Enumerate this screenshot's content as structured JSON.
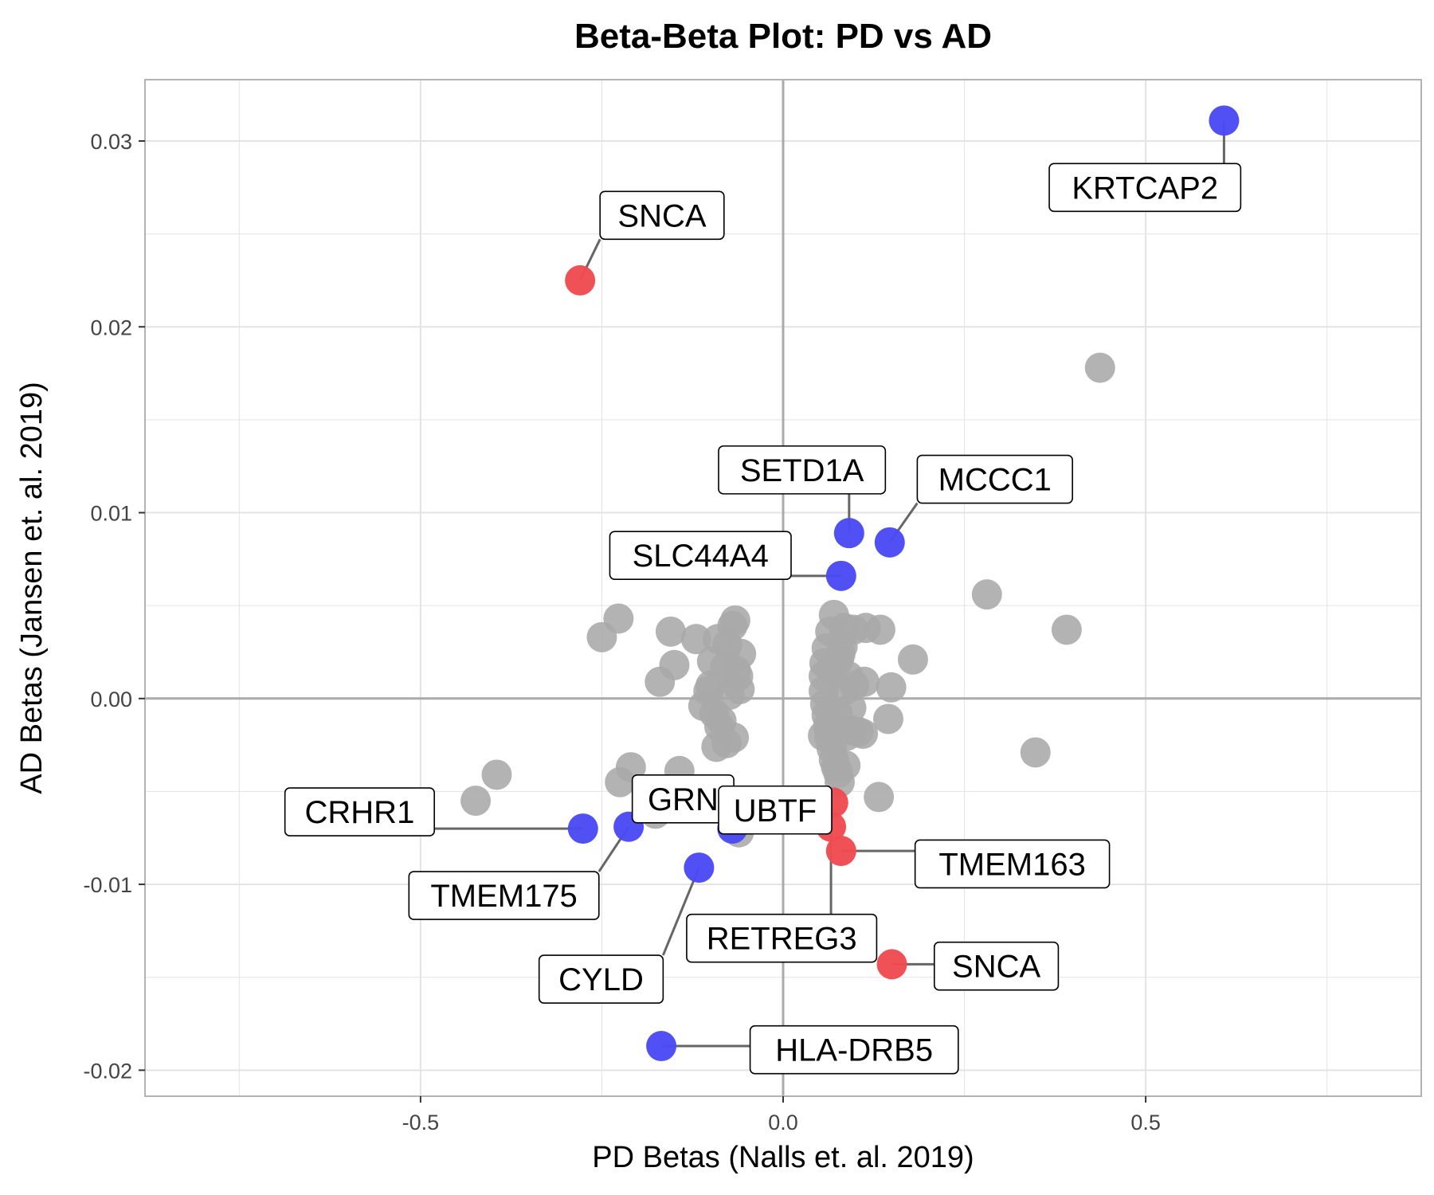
{
  "chart_data": {
    "type": "scatter",
    "title": "Beta-Beta Plot: PD vs AD",
    "xlabel": "PD Betas (Nalls et. al. 2019)",
    "ylabel": "AD Betas (Jansen et. al. 2019)",
    "xlim": [
      -0.88,
      0.88
    ],
    "ylim": [
      -0.0214,
      0.0333
    ],
    "x_ticks": [
      -0.5,
      0.0,
      0.5
    ],
    "x_tick_labels": [
      "-0.5",
      "0.0",
      "0.5"
    ],
    "y_ticks": [
      -0.02,
      -0.01,
      0.0,
      0.01,
      0.02,
      0.03
    ],
    "y_tick_labels": [
      "-0.02",
      "-0.01",
      "0.00",
      "0.01",
      "0.02",
      "0.03"
    ],
    "grid": true,
    "reference_lines": {
      "x": 0,
      "y": 0
    },
    "colors": {
      "gray": "#a9a9a9",
      "blue": "#4a4af5",
      "red": "#ef4b52",
      "grid": "#e3e3e3",
      "frame": "#b3b3b3",
      "zero_line": "#aaaaaa",
      "leader": "#666666"
    },
    "series": [
      {
        "color_key": "gray",
        "points": [
          [
            0.437,
            0.0178
          ],
          [
            0.391,
            0.0037
          ],
          [
            0.281,
            0.0056
          ],
          [
            0.348,
            -0.0029
          ],
          [
            0.179,
            0.0021
          ],
          [
            0.149,
            0.0006
          ],
          [
            0.145,
            -0.0011
          ],
          [
            0.134,
            0.0037
          ],
          [
            0.132,
            -0.0053
          ],
          [
            0.114,
            0.0038
          ],
          [
            0.112,
            0.0009
          ],
          [
            0.097,
            0.0037
          ],
          [
            0.084,
            0.0038
          ],
          [
            0.077,
            0.0021
          ],
          [
            0.07,
            0.0045
          ],
          [
            0.065,
            0.0036
          ],
          [
            0.06,
            0.0027
          ],
          [
            0.057,
            0.0019
          ],
          [
            0.056,
            0.0012
          ],
          [
            0.056,
            0.0004
          ],
          [
            0.058,
            -0.0003
          ],
          [
            0.06,
            -0.0009
          ],
          [
            0.062,
            -0.0015
          ],
          [
            0.064,
            -0.0021
          ],
          [
            0.067,
            -0.0027
          ],
          [
            0.07,
            -0.0033
          ],
          [
            0.073,
            -0.0037
          ],
          [
            0.076,
            -0.004
          ],
          [
            0.078,
            -0.0045
          ],
          [
            0.086,
            -0.0036
          ],
          [
            0.088,
            -0.002
          ],
          [
            0.094,
            -0.0017
          ],
          [
            0.098,
            0.0007
          ],
          [
            0.084,
            0.0004
          ],
          [
            0.075,
            -0.0008
          ],
          [
            0.066,
            0.0016
          ],
          [
            0.055,
            -0.002
          ],
          [
            0.104,
            -0.0018
          ],
          [
            0.11,
            -0.0019
          ],
          [
            0.094,
            -0.0005
          ],
          [
            0.079,
            0.0024
          ],
          [
            0.082,
            0.0028
          ],
          [
            0.09,
            0.0012
          ],
          [
            -0.227,
            0.0043
          ],
          [
            -0.25,
            0.0033
          ],
          [
            -0.155,
            0.0036
          ],
          [
            -0.12,
            0.0032
          ],
          [
            -0.09,
            0.0032
          ],
          [
            -0.066,
            0.0042
          ],
          [
            -0.07,
            0.0039
          ],
          [
            -0.058,
            0.0024
          ],
          [
            -0.098,
            0.002
          ],
          [
            -0.077,
            0.0029
          ],
          [
            -0.062,
            0.0012
          ],
          [
            -0.06,
            0.0005
          ],
          [
            -0.08,
            0.0017
          ],
          [
            -0.1,
            0.0007
          ],
          [
            -0.103,
            0.0004
          ],
          [
            -0.11,
            -0.0004
          ],
          [
            -0.095,
            -0.0008
          ],
          [
            -0.088,
            -0.0015
          ],
          [
            -0.092,
            -0.0026
          ],
          [
            -0.078,
            -0.0024
          ],
          [
            -0.068,
            -0.0021
          ],
          [
            -0.085,
            -0.0012
          ],
          [
            -0.074,
            0.0002
          ],
          [
            -0.065,
            0.0015
          ],
          [
            -0.15,
            0.0018
          ],
          [
            -0.17,
            0.0009
          ],
          [
            -0.395,
            -0.0041
          ],
          [
            -0.424,
            -0.0055
          ],
          [
            -0.21,
            -0.0037
          ],
          [
            -0.225,
            -0.0045
          ],
          [
            -0.143,
            -0.0039
          ],
          [
            -0.176,
            -0.0062
          ],
          [
            -0.061,
            -0.0072
          ]
        ]
      },
      {
        "color_key": "blue",
        "points": [
          [
            0.608,
            0.0311
          ],
          [
            0.147,
            0.0084
          ],
          [
            0.091,
            0.0089
          ],
          [
            0.08,
            0.0066
          ],
          [
            -0.276,
            -0.007
          ],
          [
            -0.213,
            -0.0069
          ],
          [
            -0.07,
            -0.007
          ],
          [
            -0.116,
            -0.0091
          ],
          [
            -0.168,
            -0.0187
          ]
        ]
      },
      {
        "color_key": "red",
        "points": [
          [
            -0.28,
            0.0225
          ],
          [
            0.069,
            -0.0056
          ],
          [
            0.066,
            -0.0069
          ],
          [
            0.08,
            -0.0082
          ],
          [
            0.15,
            -0.0143
          ]
        ]
      }
    ],
    "labels": [
      {
        "text": "KRTCAP2",
        "point": [
          0.608,
          0.0311
        ],
        "box_center": [
          0.499,
          0.0275
        ],
        "box_width": 0.264
      },
      {
        "text": "SNCA",
        "point": [
          -0.28,
          0.0225
        ],
        "box_center": [
          -0.167,
          0.026
        ],
        "box_width": 0.171
      },
      {
        "text": "SETD1A",
        "point": [
          0.091,
          0.0089
        ],
        "box_center": [
          0.026,
          0.0123
        ],
        "box_width": 0.23
      },
      {
        "text": "MCCC1",
        "point": [
          0.147,
          0.0084
        ],
        "box_center": [
          0.292,
          0.0118
        ],
        "box_width": 0.214
      },
      {
        "text": "SLC44A4",
        "point": [
          0.08,
          0.0066
        ],
        "box_center": [
          -0.114,
          0.0077
        ],
        "box_width": 0.25
      },
      {
        "text": "CRHR1",
        "point": [
          -0.276,
          -0.007
        ],
        "box_center": [
          -0.584,
          -0.0061
        ],
        "box_width": 0.206
      },
      {
        "text": "GRN",
        "point": [
          -0.213,
          -0.0069
        ],
        "box_center": [
          -0.138,
          -0.0054
        ],
        "box_width": 0.14
      },
      {
        "text": "UBTF",
        "point": [
          -0.07,
          -0.007
        ],
        "box_center": [
          -0.011,
          -0.006
        ],
        "box_width": 0.156
      },
      {
        "text": "TMEM163",
        "point": [
          0.08,
          -0.0082
        ],
        "box_center": [
          0.316,
          -0.0089
        ],
        "box_width": 0.268
      },
      {
        "text": "TMEM175",
        "point": [
          -0.213,
          -0.0069
        ],
        "box_center": [
          -0.385,
          -0.0106
        ],
        "box_width": 0.262
      },
      {
        "text": "RETREG3",
        "point": [
          0.066,
          -0.0069
        ],
        "box_center": [
          -0.002,
          -0.0129
        ],
        "box_width": 0.262
      },
      {
        "text": "CYLD",
        "point": [
          -0.116,
          -0.0091
        ],
        "box_center": [
          -0.251,
          -0.0151
        ],
        "box_width": 0.171
      },
      {
        "text": "SNCA",
        "point": [
          0.15,
          -0.0143
        ],
        "box_center": [
          0.294,
          -0.0144
        ],
        "box_width": 0.171
      },
      {
        "text": "HLA-DRB5",
        "point": [
          -0.168,
          -0.0187
        ],
        "box_center": [
          0.098,
          -0.0189
        ],
        "box_width": 0.287
      }
    ]
  }
}
